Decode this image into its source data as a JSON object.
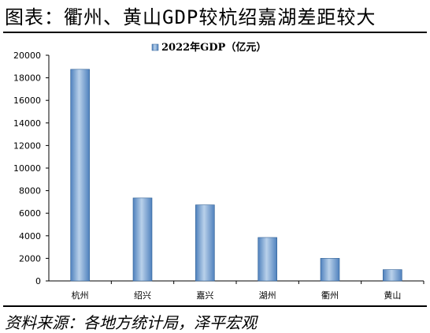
{
  "header": {
    "title": "图表：衢州、黄山GDP较杭绍嘉湖差距较大"
  },
  "footer": {
    "source": "资料来源：各地方统计局，泽平宏观"
  },
  "colors": {
    "bar_light": "#b9d1ea",
    "bar_dark": "#4f81bd",
    "bar_edge": "#2f5f94",
    "axis": "#000000"
  },
  "chart_data": {
    "type": "bar",
    "categories": [
      "杭州",
      "绍兴",
      "嘉兴",
      "湖州",
      "衢州",
      "黄山"
    ],
    "series": [
      {
        "name": "2022年GDP（亿元）",
        "values": [
          18753,
          7351,
          6739,
          3850,
          2003,
          1002
        ]
      }
    ],
    "ylim": [
      0,
      20000
    ],
    "yticks": [
      0,
      2000,
      4000,
      6000,
      8000,
      10000,
      12000,
      14000,
      16000,
      18000,
      20000
    ],
    "legend_position": "top-center",
    "grid": false
  }
}
